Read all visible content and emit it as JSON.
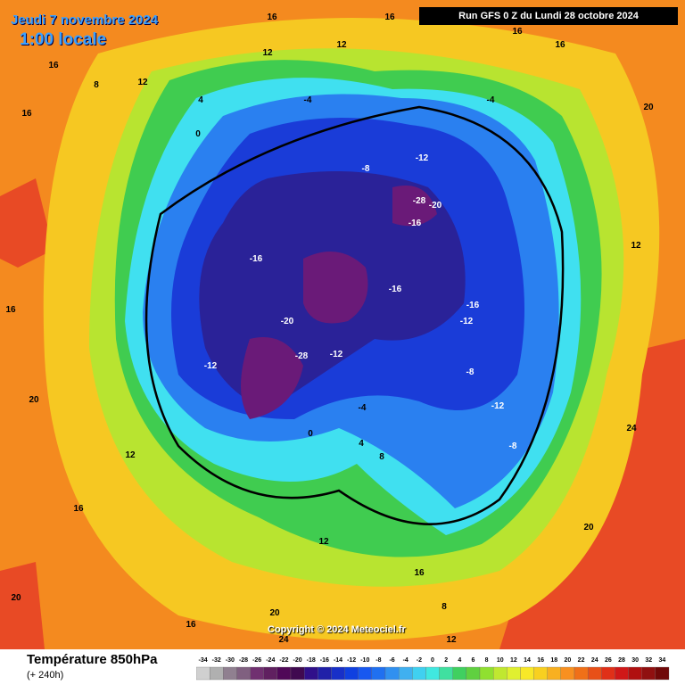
{
  "header": {
    "date": "Jeudi 7 novembre 2024",
    "time": "1:00 locale",
    "run": "Run GFS 0 Z du Lundi 28 octobre 2024"
  },
  "footer": {
    "title": "Température 850hPa",
    "lead": "(+ 240h)",
    "copyright": "Copyright © 2024 Meteociel.fr"
  },
  "legend": {
    "ticks": [
      -34,
      -32,
      -30,
      -28,
      -26,
      -24,
      -22,
      -20,
      -18,
      -16,
      -14,
      -12,
      -10,
      -8,
      -6,
      -4,
      -2,
      0,
      2,
      4,
      6,
      8,
      10,
      12,
      14,
      16,
      18,
      20,
      22,
      24,
      26,
      28,
      30,
      32,
      34
    ],
    "colors": [
      "#d0d0d0",
      "#b0b0b0",
      "#908090",
      "#806080",
      "#703070",
      "#602060",
      "#500858",
      "#400a50",
      "#30108a",
      "#2020a8",
      "#1830c8",
      "#1040e0",
      "#1858f0",
      "#2070f0",
      "#3090f0",
      "#40b0f0",
      "#40d0f0",
      "#40e8e0",
      "#40e0a0",
      "#40d060",
      "#60d040",
      "#90e030",
      "#c0e830",
      "#e0f030",
      "#f8e828",
      "#f8d020",
      "#f8b020",
      "#f89020",
      "#f07018",
      "#e85018",
      "#e03018",
      "#d01818",
      "#b01010",
      "#901010",
      "#700808"
    ]
  },
  "contour_labels": [
    16,
    16,
    16,
    16,
    12,
    12,
    12,
    8,
    16,
    16,
    -4,
    -4,
    4,
    0,
    -8,
    -12,
    -16,
    -16,
    -16,
    -16,
    -20,
    -28,
    -20,
    -28,
    -12,
    -12,
    -12,
    -8,
    -12,
    0,
    4,
    8,
    12,
    16,
    20,
    24,
    20,
    24,
    20,
    12,
    16,
    20,
    12,
    16,
    20,
    16,
    -4,
    -8,
    8,
    12
  ]
}
